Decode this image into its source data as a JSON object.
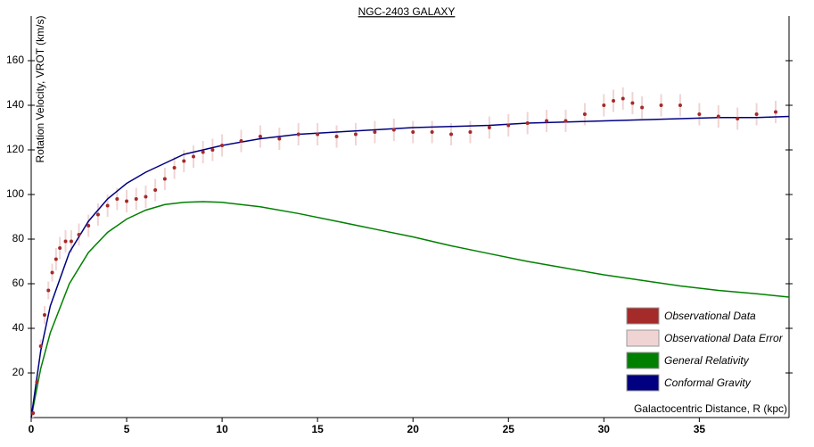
{
  "chart_data": {
    "type": "line",
    "title": "NGC-2403 GALAXY",
    "x_label": "Galactocentric Distance, R (kpc)",
    "y_label": "Rotation Velocity, VROT (km/s)",
    "xlim": [
      0,
      39.7
    ],
    "ylim": [
      0,
      180
    ],
    "xticks": [
      0,
      5,
      10,
      15,
      20,
      25,
      30,
      35
    ],
    "yticks": [
      20,
      40,
      60,
      80,
      100,
      120,
      140,
      160
    ],
    "legend": "lower right",
    "series": [
      {
        "name": "Observational Data",
        "color": "#a52a2a",
        "error_name": "Observational Data Error",
        "error_color": "#f0d4d4",
        "x": [
          0.1,
          0.3,
          0.5,
          0.7,
          0.9,
          1.1,
          1.3,
          1.5,
          1.8,
          2.1,
          2.5,
          3,
          3.5,
          4,
          4.5,
          5,
          5.5,
          6,
          6.5,
          7,
          7.5,
          8,
          8.5,
          9,
          9.5,
          10,
          11,
          12,
          13,
          14,
          15,
          16,
          17,
          18,
          19,
          20,
          21,
          22,
          23,
          24,
          25,
          26,
          27,
          28,
          29,
          30,
          30.5,
          31,
          31.5,
          32,
          33,
          34,
          35,
          36,
          37,
          38,
          39
        ],
        "values": [
          2,
          16,
          32,
          46,
          57,
          65,
          71,
          76,
          79,
          79,
          82,
          86,
          91,
          95,
          98,
          97,
          98,
          99,
          102,
          107,
          112,
          115,
          117,
          119,
          120,
          122,
          124,
          126,
          125,
          127,
          127,
          126,
          127,
          128,
          129,
          128,
          128,
          127,
          128,
          130,
          131,
          132,
          133,
          133,
          136,
          140,
          142,
          143,
          141,
          139,
          140,
          140,
          136,
          135,
          134,
          136,
          137
        ],
        "errors": [
          2,
          3,
          3,
          4,
          4,
          4,
          5,
          5,
          5,
          5,
          5,
          5,
          5,
          5,
          5,
          5,
          5,
          5,
          5,
          5,
          5,
          5,
          5,
          5,
          5,
          5,
          5,
          5,
          5,
          5,
          5,
          5,
          5,
          5,
          5,
          5,
          5,
          5,
          5,
          5,
          5,
          5,
          5,
          5,
          5,
          5,
          5,
          5,
          5,
          5,
          5,
          5,
          5,
          5,
          5,
          5,
          5
        ]
      },
      {
        "name": "General Relativity",
        "color": "#008000",
        "x": [
          0,
          0.5,
          1,
          2,
          3,
          4,
          5,
          6,
          7,
          8,
          9,
          10,
          12,
          14,
          16,
          18,
          20,
          22,
          24,
          26,
          28,
          30,
          32,
          34,
          36,
          38,
          39.7
        ],
        "values": [
          0,
          22,
          38,
          60,
          74,
          83,
          89,
          93,
          95.5,
          96.5,
          96.8,
          96.5,
          94.5,
          91.5,
          88,
          84.5,
          81,
          77,
          73.5,
          70,
          67,
          64,
          61.5,
          59,
          57,
          55.5,
          54
        ]
      },
      {
        "name": "Conformal Gravity",
        "color": "#000080",
        "x": [
          0,
          0.5,
          1,
          2,
          3,
          4,
          5,
          6,
          7,
          8,
          9,
          10,
          12,
          14,
          16,
          18,
          20,
          22,
          24,
          26,
          28,
          30,
          32,
          34,
          36,
          38,
          39.7
        ],
        "values": [
          0,
          30,
          50,
          74,
          88,
          98,
          105,
          110,
          114,
          118,
          120,
          122,
          125,
          127,
          128,
          129,
          130,
          130.5,
          131,
          132,
          132.5,
          133,
          133.5,
          134,
          134.5,
          134.5,
          135
        ]
      }
    ]
  }
}
